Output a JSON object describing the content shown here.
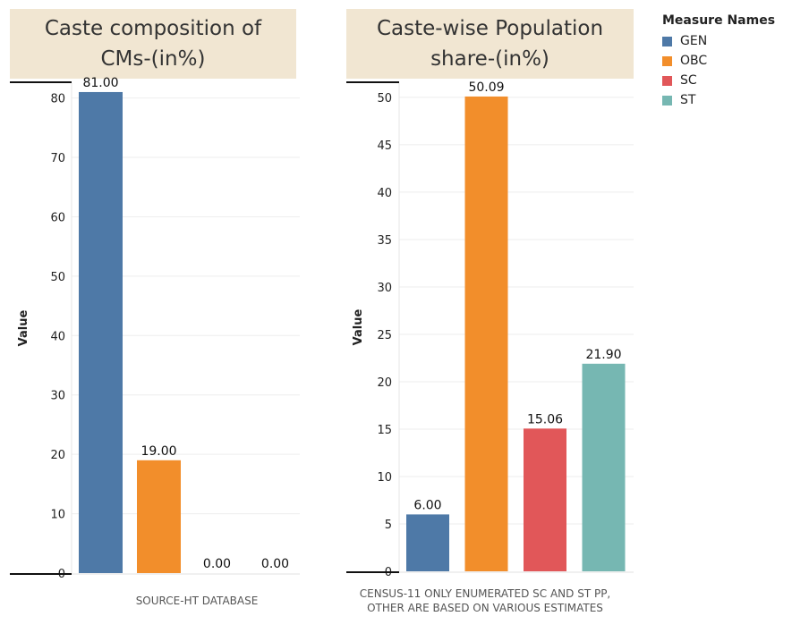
{
  "legend": {
    "title": "Measure Names",
    "items": [
      {
        "label": "GEN",
        "color": "#4e79a7"
      },
      {
        "label": "OBC",
        "color": "#f28e2b"
      },
      {
        "label": "SC",
        "color": "#e15759"
      },
      {
        "label": "ST",
        "color": "#76b7b2"
      }
    ]
  },
  "chart_data": [
    {
      "type": "bar",
      "title_lines": [
        "Caste composition of",
        "CMs-(in%)"
      ],
      "categories": [
        "GEN",
        "OBC",
        "SC",
        "ST"
      ],
      "values": [
        81.0,
        19.0,
        0.0,
        0.0
      ],
      "value_labels": [
        "81.00",
        "19.00",
        "0.00",
        "0.00"
      ],
      "ylabel": "Value",
      "ylim": [
        0,
        82.5
      ],
      "yticks": [
        0,
        10,
        20,
        30,
        40,
        50,
        60,
        70,
        80
      ],
      "footnote": [
        "SOURCE-HT DATABASE"
      ]
    },
    {
      "type": "bar",
      "title_lines": [
        "Caste-wise Population",
        "share-(in%)"
      ],
      "categories": [
        "GEN",
        "OBC",
        "SC",
        "ST"
      ],
      "values": [
        6.0,
        50.09,
        15.06,
        21.9
      ],
      "value_labels": [
        "6.00",
        "50.09",
        "15.06",
        "21.90"
      ],
      "ylabel": "Value",
      "ylim": [
        0,
        51.5
      ],
      "yticks": [
        0,
        5,
        10,
        15,
        20,
        25,
        30,
        35,
        40,
        45,
        50
      ],
      "footnote": [
        "CENSUS-11 ONLY ENUMERATED SC AND ST PP,",
        "OTHER ARE BASED ON VARIOUS ESTIMATES"
      ]
    }
  ]
}
